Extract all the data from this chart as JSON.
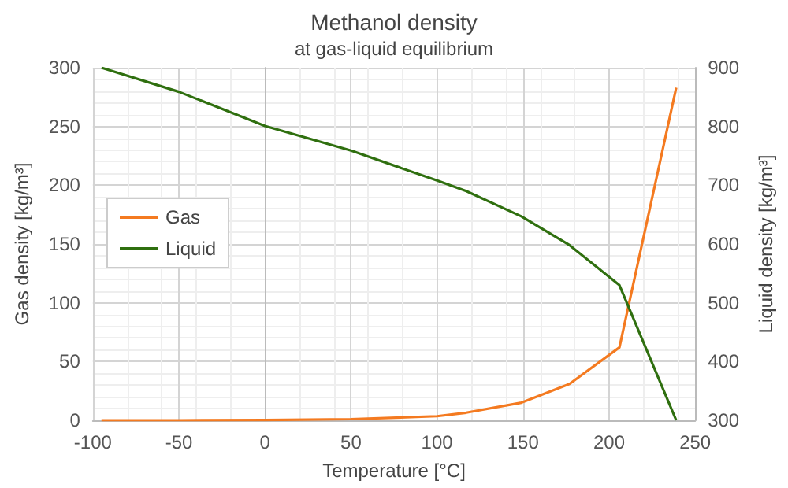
{
  "chart_data": {
    "type": "line",
    "title": "Methanol density",
    "subtitle": "at gas-liquid equilibrium",
    "xlabel": "Temperature [°C]",
    "ylabel": "Gas density [kg/m³]",
    "y2label": "Liquid density [kg/m³]",
    "x": [
      -95,
      -50,
      0,
      50,
      100,
      117,
      149,
      177,
      206,
      239
    ],
    "series": [
      {
        "name": "Gas",
        "color": "#f47a20",
        "values": [
          0,
          0,
          0.2,
          1,
          3.5,
          6.5,
          15,
          31,
          62,
          283
        ]
      },
      {
        "name": "Liquid",
        "color": "#2f6f0f",
        "axis": "y2",
        "values": [
          900,
          859,
          801,
          759,
          708,
          690,
          647,
          598,
          530,
          300
        ]
      }
    ],
    "xlim": [
      -100,
      250
    ],
    "xticks": [
      -100,
      -50,
      0,
      50,
      100,
      150,
      200,
      250
    ],
    "ylim": [
      0,
      300
    ],
    "yticks": [
      0,
      50,
      100,
      150,
      200,
      250,
      300
    ],
    "y2lim": [
      300,
      900
    ],
    "y2ticks": [
      300,
      400,
      500,
      600,
      700,
      800,
      900
    ],
    "grid": true,
    "legend": "left",
    "marker": "none",
    "line_style": "solid"
  }
}
